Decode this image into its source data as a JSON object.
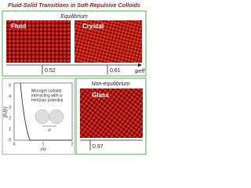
{
  "title": "Fluid-Solid Transitions in Soft-Repulsive Colloids",
  "equilibrium": {
    "label": "Equilibrium",
    "panels": [
      {
        "label": "Fluid",
        "phi": "0.52"
      },
      {
        "label": "Crystal",
        "phi": "0.61"
      }
    ],
    "axis_label": "φeff"
  },
  "plot": {
    "y_label": "βU(r)",
    "x_label": "r/σ",
    "yticks": [
      "0",
      "1",
      "2",
      "3",
      "4",
      "5"
    ],
    "xticks": [
      "0",
      "1",
      "2"
    ],
    "annotation": [
      "Microgel colloids",
      "interacting with a",
      "Hertzian potential"
    ],
    "sigma": "σ"
  },
  "non_equilibrium": {
    "label": "Non-equilibrium",
    "panel": {
      "label": "Glass",
      "phi": "0.97"
    }
  }
}
